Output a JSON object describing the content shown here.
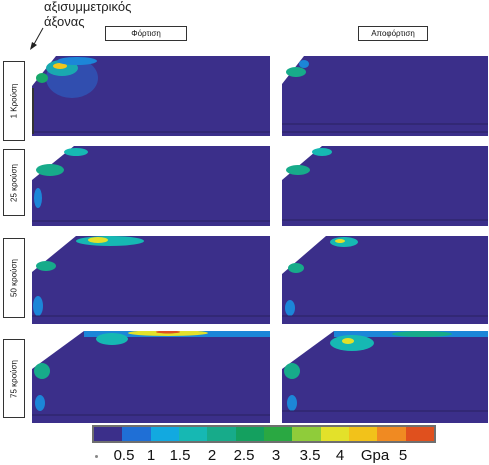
{
  "annotation": {
    "line1": "αξισυμμετρικός",
    "line2": "άξονας"
  },
  "columns": [
    "Φόρτιση",
    "Αποφόρτιση"
  ],
  "rows": [
    "1 Κρούση",
    "25 κρούση",
    "50 κρούση",
    "75 κρούση"
  ],
  "legend": {
    "colors": [
      "#3b2f8a",
      "#1f6fd6",
      "#12a9e0",
      "#16b8b3",
      "#17ab8a",
      "#14a05f",
      "#2aa842",
      "#8fcc3a",
      "#e3e12a",
      "#f2c21a",
      "#f08a22",
      "#e0501e"
    ],
    "ticks": [
      "0.5",
      "1",
      "1.5",
      "2",
      "2.5",
      "3",
      "3.5",
      "4",
      "Gpa",
      "5"
    ]
  },
  "colors": {
    "panel_bg": "#3b2f8a",
    "panel_line": "#2a2160"
  }
}
